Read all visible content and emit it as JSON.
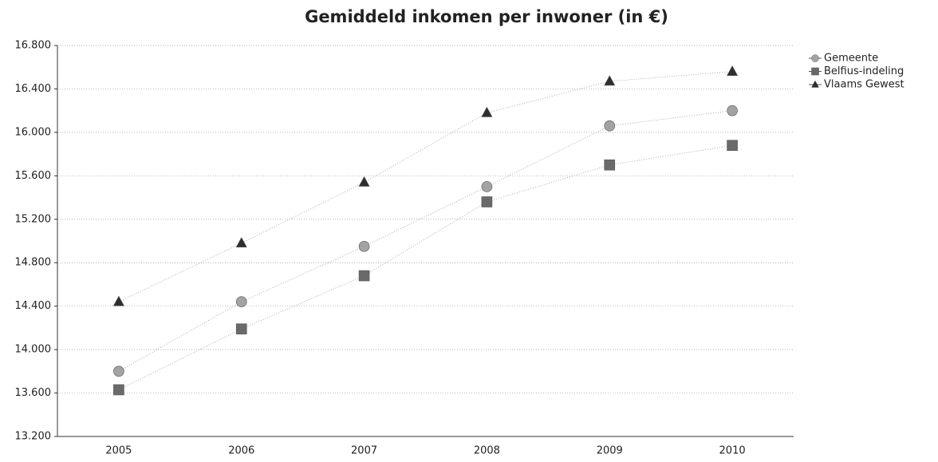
{
  "chart_data": {
    "type": "line",
    "title": "Gemiddeld inkomen per inwoner (in €)",
    "categories": [
      "2005",
      "2006",
      "2007",
      "2008",
      "2009",
      "2010"
    ],
    "series": [
      {
        "name": "Gemeente",
        "color": "#a3a3a3",
        "marker": "circle",
        "values": [
          13800,
          14440,
          14950,
          15500,
          16060,
          16200
        ]
      },
      {
        "name": "Belfius-indeling",
        "color": "#6a6a6a",
        "marker": "square",
        "values": [
          13630,
          14190,
          14680,
          15360,
          15700,
          15880
        ]
      },
      {
        "name": "Vlaams Gewest",
        "color": "#2e2e2e",
        "marker": "triangle",
        "values": [
          14440,
          14980,
          15540,
          16180,
          16470,
          16560
        ]
      }
    ],
    "ylim": [
      13200,
      16800
    ],
    "yticks": [
      {
        "value": 13200,
        "label": "13.200"
      },
      {
        "value": 13600,
        "label": "13.600"
      },
      {
        "value": 14000,
        "label": "14.000"
      },
      {
        "value": 14400,
        "label": "14.400"
      },
      {
        "value": 14800,
        "label": "14.800"
      },
      {
        "value": 15200,
        "label": "15.200"
      },
      {
        "value": 15600,
        "label": "15.600"
      },
      {
        "value": 16000,
        "label": "16.000"
      },
      {
        "value": 16400,
        "label": "16.400"
      },
      {
        "value": 16800,
        "label": "16.800"
      }
    ],
    "grid": true,
    "legend": "top-right"
  }
}
